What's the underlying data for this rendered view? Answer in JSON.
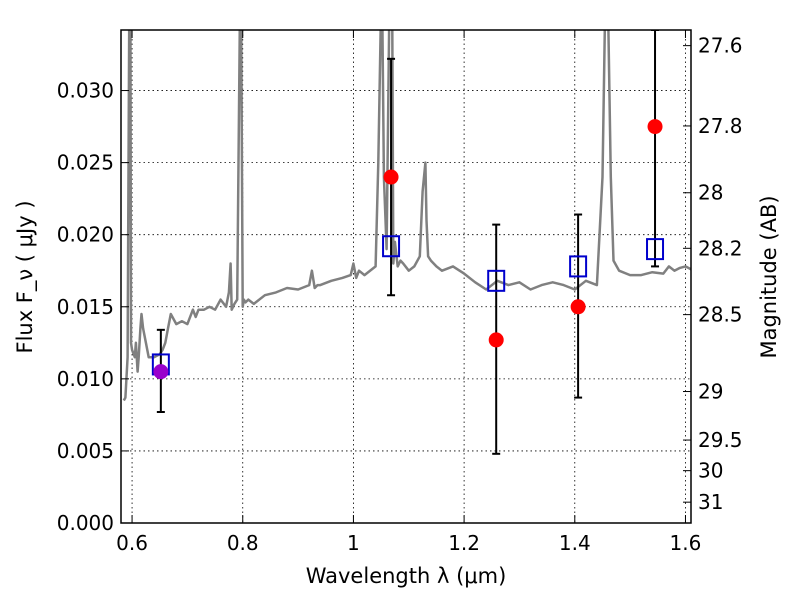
{
  "chart_data": {
    "type": "scatter",
    "title": "",
    "xlabel": "Wavelength  λ (μm)",
    "ylabel": "Flux  F_ν  ( μJy )",
    "ylabel_right": "Magnitude (AB)",
    "xlim": [
      0.58,
      1.61
    ],
    "ylim": [
      0.0,
      0.0342
    ],
    "grid": true,
    "x_ticks": [
      {
        "value": 0.6,
        "label": "0.6"
      },
      {
        "value": 0.8,
        "label": "0.8"
      },
      {
        "value": 1.0,
        "label": "1"
      },
      {
        "value": 1.2,
        "label": "1.2"
      },
      {
        "value": 1.4,
        "label": "1.4"
      },
      {
        "value": 1.6,
        "label": "1.6"
      }
    ],
    "y_ticks": [
      {
        "value": 0.0,
        "label": "0.000"
      },
      {
        "value": 0.005,
        "label": "0.005"
      },
      {
        "value": 0.01,
        "label": "0.010"
      },
      {
        "value": 0.015,
        "label": "0.015"
      },
      {
        "value": 0.02,
        "label": "0.020"
      },
      {
        "value": 0.025,
        "label": "0.025"
      },
      {
        "value": 0.03,
        "label": "0.030"
      }
    ],
    "right_ticks": [
      {
        "value": 27.6,
        "label": "27.6"
      },
      {
        "value": 27.8,
        "label": "27.8"
      },
      {
        "value": 28.0,
        "label": "28"
      },
      {
        "value": 28.2,
        "label": "28.2"
      },
      {
        "value": 28.5,
        "label": "28.5"
      },
      {
        "value": 29.0,
        "label": "29"
      },
      {
        "value": 29.5,
        "label": "29.5"
      },
      {
        "value": 30.0,
        "label": "30"
      },
      {
        "value": 31.0,
        "label": "31"
      }
    ],
    "series": [
      {
        "kind": "line",
        "color": "#808080",
        "x": [
          0.585,
          0.588,
          0.592,
          0.595,
          0.597,
          0.598,
          0.6,
          0.605,
          0.607,
          0.61,
          0.612,
          0.615,
          0.617,
          0.62,
          0.625,
          0.63,
          0.64,
          0.65,
          0.655,
          0.66,
          0.665,
          0.67,
          0.68,
          0.69,
          0.7,
          0.71,
          0.715,
          0.72,
          0.73,
          0.74,
          0.75,
          0.76,
          0.77,
          0.775,
          0.778,
          0.78,
          0.785,
          0.79,
          0.795,
          0.797,
          0.8,
          0.802,
          0.805,
          0.81,
          0.82,
          0.84,
          0.86,
          0.88,
          0.9,
          0.92,
          0.925,
          0.93,
          0.935,
          0.94,
          0.96,
          0.98,
          0.995,
          1.0,
          1.005,
          1.01,
          1.02,
          1.04,
          1.045,
          1.05,
          1.052,
          1.055,
          1.06,
          1.065,
          1.07,
          1.072,
          1.075,
          1.08,
          1.085,
          1.09,
          1.1,
          1.11,
          1.12,
          1.125,
          1.13,
          1.132,
          1.135,
          1.14,
          1.15,
          1.16,
          1.18,
          1.2,
          1.22,
          1.24,
          1.26,
          1.28,
          1.3,
          1.32,
          1.34,
          1.36,
          1.38,
          1.4,
          1.42,
          1.44,
          1.45,
          1.455,
          1.46,
          1.465,
          1.47,
          1.48,
          1.5,
          1.52,
          1.54,
          1.56,
          1.57,
          1.58,
          1.59,
          1.6,
          1.61
        ],
        "y": [
          0.0085,
          0.0087,
          0.0115,
          0.036,
          0.036,
          0.0125,
          0.012,
          0.0115,
          0.0125,
          0.0105,
          0.0115,
          0.0135,
          0.0145,
          0.0135,
          0.0125,
          0.0115,
          0.0115,
          0.0117,
          0.012,
          0.0125,
          0.0135,
          0.0145,
          0.0138,
          0.014,
          0.0138,
          0.0148,
          0.0143,
          0.0148,
          0.0148,
          0.015,
          0.0148,
          0.0155,
          0.015,
          0.016,
          0.018,
          0.0148,
          0.0152,
          0.0155,
          0.036,
          0.036,
          0.015,
          0.0155,
          0.0153,
          0.0155,
          0.0152,
          0.0158,
          0.016,
          0.0163,
          0.0162,
          0.0165,
          0.0175,
          0.0163,
          0.0165,
          0.0165,
          0.0168,
          0.017,
          0.0172,
          0.018,
          0.017,
          0.0175,
          0.0172,
          0.0178,
          0.025,
          0.036,
          0.036,
          0.024,
          0.019,
          0.036,
          0.036,
          0.018,
          0.0195,
          0.0178,
          0.0182,
          0.018,
          0.0175,
          0.0178,
          0.0185,
          0.023,
          0.025,
          0.021,
          0.0185,
          0.0182,
          0.0178,
          0.0175,
          0.0178,
          0.0173,
          0.0167,
          0.0162,
          0.0168,
          0.0165,
          0.0167,
          0.0162,
          0.0165,
          0.0167,
          0.0165,
          0.0162,
          0.0168,
          0.0165,
          0.024,
          0.036,
          0.036,
          0.024,
          0.0182,
          0.0175,
          0.0172,
          0.0172,
          0.0174,
          0.0173,
          0.0178,
          0.0175,
          0.0177,
          0.0178,
          0.0176
        ]
      },
      {
        "kind": "errorbar",
        "color": "#000000",
        "points": [
          {
            "x": 0.652,
            "low": 0.0077,
            "high": 0.0134
          },
          {
            "x": 1.068,
            "low": 0.0158,
            "high": 0.0322
          },
          {
            "x": 1.258,
            "low": 0.0048,
            "high": 0.0207
          },
          {
            "x": 1.406,
            "low": 0.0087,
            "high": 0.0214
          },
          {
            "x": 1.545,
            "low": 0.0178,
            "high": 0.0342
          }
        ]
      },
      {
        "kind": "marker-square",
        "color": "#0000cc",
        "x": [
          0.652,
          1.068,
          1.258,
          1.406,
          1.545
        ],
        "y": [
          0.011,
          0.0192,
          0.0168,
          0.0178,
          0.019
        ]
      },
      {
        "kind": "marker-circle",
        "color": "#ff0000",
        "x": [
          0.652,
          1.068,
          1.258,
          1.406,
          1.545
        ],
        "y": [
          0.0105,
          0.024,
          0.0127,
          0.015,
          0.0275
        ],
        "colors": [
          "#9900cc",
          "#ff0000",
          "#ff0000",
          "#ff0000",
          "#ff0000"
        ]
      }
    ]
  }
}
